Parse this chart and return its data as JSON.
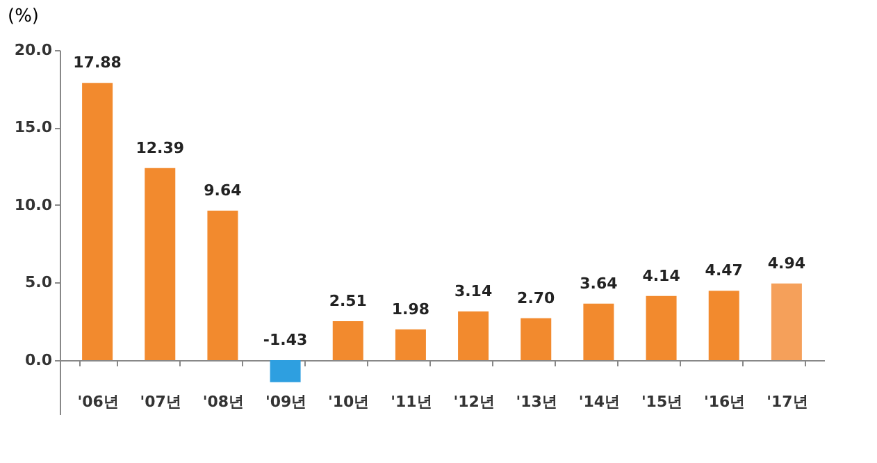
{
  "chart_data": {
    "type": "bar",
    "ylabel": "(%)",
    "categories": [
      "'06년",
      "'07년",
      "'08년",
      "'09년",
      "'10년",
      "'11년",
      "'12년",
      "'13년",
      "'14년",
      "'15년",
      "'16년",
      "'17년"
    ],
    "values": [
      17.88,
      12.39,
      9.64,
      -1.43,
      2.51,
      1.98,
      3.14,
      2.7,
      3.64,
      4.14,
      4.47,
      4.94
    ],
    "value_labels": [
      "17.88",
      "12.39",
      "9.64",
      "-1.43",
      "2.51",
      "1.98",
      "3.14",
      "2.70",
      "3.64",
      "4.14",
      "4.47",
      "4.94"
    ],
    "colors": [
      "#f28a2e",
      "#f28a2e",
      "#f28a2e",
      "#2e9fe0",
      "#f28a2e",
      "#f28a2e",
      "#f28a2e",
      "#f28a2e",
      "#f28a2e",
      "#f28a2e",
      "#f28a2e",
      "#f5a05a"
    ],
    "ylim": [
      -3.5,
      20
    ],
    "yticks": [
      {
        "value": 0,
        "label": "0.0"
      },
      {
        "value": 5,
        "label": "5.0"
      },
      {
        "value": 10,
        "label": "10.0"
      },
      {
        "value": 15,
        "label": "15.0"
      },
      {
        "value": 20,
        "label": "20.0"
      }
    ]
  }
}
